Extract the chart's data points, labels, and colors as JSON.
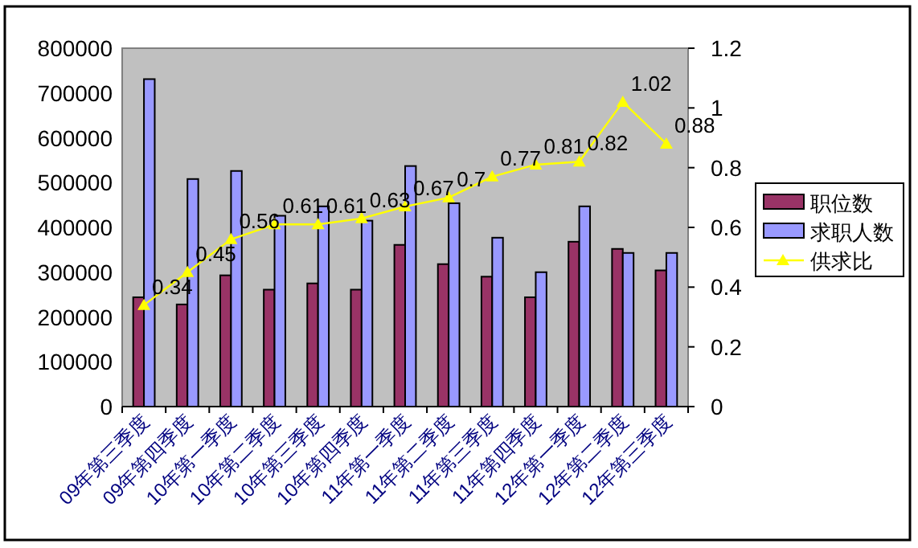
{
  "chart_data": {
    "type": "bar",
    "categories": [
      "09年第三季度",
      "09年第四季度",
      "10年第一季度",
      "10年第二季度",
      "10年第三季度",
      "10年第四季度",
      "11年第一季度",
      "11年第二季度",
      "11年第三季度",
      "11年第四季度",
      "12年第一季度",
      "12年第二季度",
      "12年第三季度"
    ],
    "series": [
      {
        "name": "职位数",
        "color": "#993366",
        "values": [
          244000,
          228000,
          293000,
          261000,
          275000,
          261000,
          361000,
          318000,
          290000,
          244000,
          368000,
          352000,
          304000
        ]
      },
      {
        "name": "求职人数",
        "color": "#9999ff",
        "values": [
          731000,
          508000,
          526000,
          426000,
          447000,
          415000,
          537000,
          454000,
          377000,
          300000,
          447000,
          343000,
          343000
        ]
      },
      {
        "name": "供求比",
        "type": "line",
        "axis": "y2",
        "color": "#ffff00",
        "marker": "triangle",
        "values": [
          0.34,
          0.45,
          0.56,
          0.61,
          0.61,
          0.63,
          0.67,
          0.7,
          0.77,
          0.81,
          0.82,
          1.02,
          0.88
        ],
        "value_labels": [
          "0.34",
          "0.45",
          "0.56",
          "0.61",
          "0.61",
          "0.63",
          "0.67",
          "0.7",
          "0.77",
          "0.81",
          "0.82",
          "1.02",
          "0.88"
        ]
      }
    ],
    "ylim": [
      0,
      800000
    ],
    "yticks": [
      0,
      100000,
      200000,
      300000,
      400000,
      500000,
      600000,
      700000,
      800000
    ],
    "y2lim": [
      0,
      1.2
    ],
    "y2ticks": [
      0,
      {
        "value": 0.2,
        "label": "0.2"
      },
      {
        "value": 0.4,
        "label": "0.4"
      },
      {
        "value": 0.6,
        "label": "0.6"
      },
      {
        "value": 0.8,
        "label": "0.8"
      },
      1,
      {
        "value": 1.2,
        "label": "1.2"
      }
    ],
    "grid": false,
    "legend": "right"
  }
}
